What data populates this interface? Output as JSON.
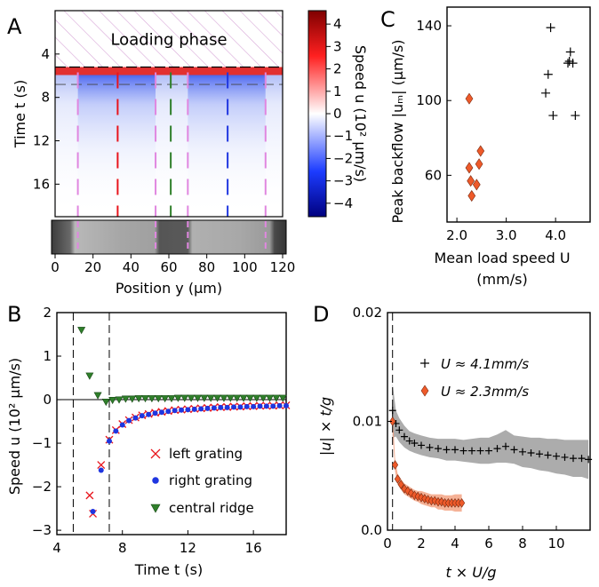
{
  "panels": {
    "A": {
      "letter": "A",
      "overlay_label": "Loading phase",
      "xlabel": "Position y (μm)",
      "ylabel": "Time t (s)",
      "xlim": [
        0,
        120
      ],
      "ylim": [
        0,
        19
      ],
      "xticks": [
        "0",
        "20",
        "40",
        "60",
        "80",
        "100",
        "120"
      ],
      "yticks": [
        "4",
        "8",
        "12",
        "16"
      ],
      "loading_phase_end_s": 5.2,
      "dashed_time_s": 6.8,
      "grating_edges_um": [
        12,
        53,
        70,
        111
      ],
      "left_grating_center_um": 33,
      "central_ridge_um": 61,
      "right_grating_center_um": 91,
      "colorbar": {
        "label": "Speed u (10² μm/s)",
        "range": [
          -4.6,
          4.6
        ],
        "ticks": [
          "4",
          "3",
          "2",
          "1",
          "0",
          "−1",
          "−2",
          "−3",
          "−4"
        ],
        "colors": {
          "low": "#00007f",
          "mid": "#ffffff",
          "high": "#7f0000"
        }
      }
    },
    "B": {
      "letter": "B",
      "xlabel": "Time t (s)",
      "ylabel": "Speed u (10² μm/s)",
      "xticks": [
        "4",
        "8",
        "12",
        "16"
      ],
      "yticks": [
        "2",
        "1",
        "0",
        "−1",
        "−2",
        "−3"
      ],
      "legend": [
        "left grating",
        "right grating",
        "central ridge"
      ]
    },
    "C": {
      "letter": "C",
      "xlabel_line1": "Mean load speed U",
      "xlabel_line2": "(mm/s)",
      "ylabel": "Peak backflow |uₘ| (μm/s)",
      "xticks": [
        "2.0",
        "3.0",
        "4.0"
      ],
      "yticks": [
        "60",
        "100",
        "140"
      ]
    },
    "D": {
      "letter": "D",
      "xlabel": "t × U/g",
      "ylabel": "|u| × t/g",
      "xticks": [
        "0",
        "2",
        "4",
        "6",
        "8",
        "10"
      ],
      "yticks": [
        "0.0",
        "0.01",
        "0.02"
      ],
      "legend": [
        "U ≈ 4.1mm/s",
        "U ≈ 2.3mm/s"
      ]
    }
  },
  "colors": {
    "red": "#e8141c",
    "blue": "#1f36e0",
    "green": "#2f7f2a",
    "pink": "#e087e0",
    "orange": "#ee5a2a",
    "grey_band": "#9e9e9e",
    "salmon_band": "#f3a585"
  },
  "chart_data": [
    {
      "type": "heatmap",
      "panel": "A",
      "xlabel": "Position y (μm)",
      "ylabel": "Time t (s)",
      "xlim": [
        0,
        120
      ],
      "ylim": [
        0,
        19
      ],
      "colorbar_label": "Speed u (10² μm/s)",
      "colorbar_range": [
        -4.6,
        4.6
      ],
      "annotation": "Loading phase"
    },
    {
      "type": "scatter",
      "panel": "B",
      "xlabel": "Time t (s)",
      "ylabel": "Speed u (10² μm/s)",
      "xlim": [
        4,
        18
      ],
      "ylim": [
        -3.1,
        2.0
      ],
      "vlines": [
        5.0,
        7.2
      ],
      "series": [
        {
          "name": "left grating",
          "marker": "x",
          "color": "red",
          "x": [
            6.0,
            6.2,
            6.7,
            7.2,
            7.6,
            8.0,
            8.4,
            8.8,
            9.2,
            9.6,
            10.0,
            10.4,
            10.8,
            11.2,
            11.6,
            12.0,
            12.4,
            12.8,
            13.2,
            13.6,
            14.0,
            14.4,
            14.8,
            15.2,
            15.6,
            16.0,
            16.4,
            16.8,
            17.2,
            17.6,
            18.0
          ],
          "y": [
            -2.2,
            -2.62,
            -1.5,
            -0.92,
            -0.7,
            -0.56,
            -0.47,
            -0.41,
            -0.36,
            -0.33,
            -0.3,
            -0.28,
            -0.26,
            -0.24,
            -0.23,
            -0.22,
            -0.21,
            -0.2,
            -0.19,
            -0.18,
            -0.17,
            -0.17,
            -0.16,
            -0.16,
            -0.15,
            -0.15,
            -0.14,
            -0.14,
            -0.14,
            -0.13,
            -0.13
          ]
        },
        {
          "name": "right grating",
          "marker": "o",
          "color": "blue",
          "x": [
            6.2,
            6.7,
            7.2,
            7.6,
            8.0,
            8.4,
            8.8,
            9.2,
            9.6,
            10.0,
            10.4,
            10.8,
            11.2,
            11.6,
            12.0,
            12.4,
            12.8,
            13.2,
            13.6,
            14.0,
            14.4,
            14.8,
            15.2,
            15.6,
            16.0,
            16.4,
            16.8,
            17.2,
            17.6,
            18.0
          ],
          "y": [
            -2.57,
            -1.62,
            -0.95,
            -0.72,
            -0.58,
            -0.48,
            -0.42,
            -0.37,
            -0.34,
            -0.31,
            -0.29,
            -0.27,
            -0.25,
            -0.24,
            -0.23,
            -0.22,
            -0.21,
            -0.2,
            -0.19,
            -0.18,
            -0.18,
            -0.17,
            -0.17,
            -0.16,
            -0.16,
            -0.15,
            -0.15,
            -0.15,
            -0.14,
            -0.14
          ]
        },
        {
          "name": "central ridge",
          "marker": "v",
          "color": "green",
          "x": [
            5.5,
            6.0,
            6.5,
            7.0,
            7.4,
            7.8,
            8.2,
            8.6,
            9.0,
            9.4,
            9.8,
            10.2,
            10.6,
            11.0,
            11.4,
            11.8,
            12.2,
            12.6,
            13.0,
            13.4,
            13.8,
            14.2,
            14.6,
            15.0,
            15.4,
            15.8,
            16.2,
            16.6,
            17.0,
            17.4,
            17.8
          ],
          "y": [
            1.6,
            0.55,
            0.1,
            -0.05,
            -0.01,
            0.0,
            0.02,
            0.02,
            0.03,
            0.03,
            0.03,
            0.03,
            0.03,
            0.03,
            0.04,
            0.04,
            0.04,
            0.04,
            0.04,
            0.04,
            0.04,
            0.04,
            0.04,
            0.04,
            0.04,
            0.04,
            0.04,
            0.04,
            0.04,
            0.04,
            0.04
          ]
        }
      ]
    },
    {
      "type": "scatter",
      "panel": "C",
      "xlabel": "Mean load speed U (mm/s)",
      "ylabel": "Peak backflow |uₘ| (μm/s)",
      "xlim": [
        1.8,
        4.7
      ],
      "ylim": [
        35,
        150
      ],
      "series": [
        {
          "marker": "+",
          "color": "black",
          "x": [
            3.8,
            3.85,
            3.9,
            3.95,
            4.25,
            4.28,
            4.3,
            4.35,
            4.4
          ],
          "y": [
            104,
            114,
            139,
            92,
            120,
            121,
            126,
            120,
            92
          ]
        },
        {
          "marker": "diamond",
          "color": "orange",
          "x": [
            2.25,
            2.25,
            2.28,
            2.3,
            2.4,
            2.45,
            2.48
          ],
          "y": [
            101,
            64,
            57,
            49,
            55,
            66,
            73
          ]
        }
      ]
    },
    {
      "type": "scatter",
      "panel": "D",
      "xlabel": "t × U/g",
      "ylabel": "|u| × t/g",
      "xlim": [
        0,
        12
      ],
      "ylim": [
        0,
        0.02
      ],
      "vlines": [
        0.3
      ],
      "series": [
        {
          "name": "U ≈ 4.1mm/s",
          "marker": "+",
          "color": "black",
          "band_color": "grey",
          "x": [
            0.3,
            0.5,
            0.7,
            1.0,
            1.3,
            1.6,
            2.0,
            2.5,
            3.0,
            3.5,
            4.0,
            4.5,
            5.0,
            5.5,
            6.0,
            6.5,
            7.0,
            7.5,
            8.0,
            8.5,
            9.0,
            9.5,
            10.0,
            10.5,
            11.0,
            11.5,
            11.9
          ],
          "y": [
            0.011,
            0.0098,
            0.0092,
            0.0086,
            0.0082,
            0.008,
            0.0078,
            0.0076,
            0.0075,
            0.0074,
            0.0074,
            0.0073,
            0.0073,
            0.0073,
            0.0073,
            0.0075,
            0.0077,
            0.0074,
            0.0072,
            0.0071,
            0.007,
            0.0069,
            0.0068,
            0.0067,
            0.0066,
            0.0066,
            0.0065
          ],
          "band": [
            0.0025,
            0.0012,
            0.0011,
            0.001,
            0.0009,
            0.0009,
            0.0009,
            0.0009,
            0.0009,
            0.001,
            0.001,
            0.001,
            0.0011,
            0.0012,
            0.0012,
            0.0013,
            0.0015,
            0.0013,
            0.0014,
            0.0014,
            0.0015,
            0.0015,
            0.0016,
            0.0016,
            0.0017,
            0.0017,
            0.0018
          ]
        },
        {
          "name": "U ≈ 2.3mm/s",
          "marker": "diamond",
          "color": "orange",
          "band_color": "salmon",
          "x": [
            0.3,
            0.45,
            0.6,
            0.8,
            1.0,
            1.2,
            1.4,
            1.6,
            1.8,
            2.0,
            2.2,
            2.4,
            2.6,
            2.8,
            3.0,
            3.2,
            3.4,
            3.6,
            3.8,
            4.0,
            4.2,
            4.4
          ],
          "y": [
            0.01,
            0.006,
            0.0047,
            0.0042,
            0.0038,
            0.0036,
            0.0034,
            0.0032,
            0.0031,
            0.003,
            0.0029,
            0.0028,
            0.0027,
            0.0027,
            0.0026,
            0.0026,
            0.0025,
            0.0025,
            0.0025,
            0.0025,
            0.0025,
            0.0025
          ],
          "band": [
            0.001,
            0.0006,
            0.0005,
            0.0005,
            0.0005,
            0.0005,
            0.0005,
            0.0005,
            0.0005,
            0.0006,
            0.0006,
            0.0006,
            0.0006,
            0.0006,
            0.0007,
            0.0007,
            0.0007,
            0.0007,
            0.0007,
            0.0008,
            0.0008,
            0.0008
          ]
        }
      ]
    }
  ]
}
